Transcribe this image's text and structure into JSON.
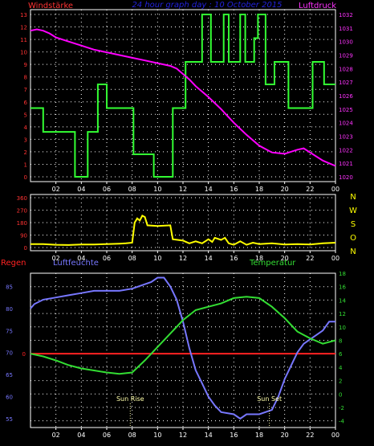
{
  "header": {
    "title": "24 hour graph day : 10 October 2015",
    "left_label": "Windstärke",
    "right_label": "Luftdruck"
  },
  "direction_labels": [
    "N",
    "W",
    "S",
    "O",
    "N"
  ],
  "lower_header": {
    "left_label": "Regen",
    "mid_label": "Luftfeuchte",
    "right_label": "Temperatur"
  },
  "colors": {
    "wind": "#33ff33",
    "pressure": "#ff00ff",
    "direction": "#ffff00",
    "humidity": "#7777ff",
    "temperature": "#33dd33",
    "rain": "#ff2222",
    "wind_axis": "#ff3333",
    "pressure_axis": "#ff33ff",
    "title": "#2222dd",
    "frame": "#ffffff",
    "grid": "#ffffff",
    "sun_markers": "#ffffaa"
  },
  "chart_data": [
    {
      "type": "line",
      "x_ticks": [
        "02",
        "04",
        "06",
        "08",
        "10",
        "12",
        "14",
        "16",
        "18",
        "20",
        "22",
        "00"
      ],
      "xlim": [
        0,
        24
      ],
      "series": [
        {
          "name": "Windstärke",
          "axis": "left",
          "ylim": [
            0,
            13
          ],
          "ticks": [
            0,
            1,
            2,
            3,
            4,
            5,
            6,
            7,
            8,
            9,
            10,
            11,
            12,
            13
          ],
          "step": true,
          "points": [
            [
              0,
              5.5
            ],
            [
              1,
              5.5
            ],
            [
              1,
              3.6
            ],
            [
              3.5,
              3.6
            ],
            [
              3.5,
              0
            ],
            [
              4.5,
              0
            ],
            [
              4.5,
              3.6
            ],
            [
              5.3,
              3.6
            ],
            [
              5.3,
              7.4
            ],
            [
              6,
              7.4
            ],
            [
              6,
              5.5
            ],
            [
              8.1,
              5.5
            ],
            [
              8.1,
              1.8
            ],
            [
              9.7,
              1.8
            ],
            [
              9.7,
              0
            ],
            [
              11.2,
              0
            ],
            [
              11.2,
              5.5
            ],
            [
              12.2,
              5.5
            ],
            [
              12.2,
              9.2
            ],
            [
              13.5,
              9.2
            ],
            [
              13.5,
              13
            ],
            [
              14.2,
              13
            ],
            [
              14.2,
              9.2
            ],
            [
              15.2,
              9.2
            ],
            [
              15.2,
              13
            ],
            [
              15.6,
              13
            ],
            [
              15.6,
              9.2
            ],
            [
              16.5,
              9.2
            ],
            [
              16.5,
              13
            ],
            [
              16.9,
              13
            ],
            [
              16.9,
              9.2
            ],
            [
              17.6,
              9.2
            ],
            [
              17.6,
              11.1
            ],
            [
              17.9,
              11.1
            ],
            [
              17.9,
              13
            ],
            [
              18.5,
              13
            ],
            [
              18.5,
              7.4
            ],
            [
              19.2,
              7.4
            ],
            [
              19.2,
              9.2
            ],
            [
              20.3,
              9.2
            ],
            [
              20.3,
              5.5
            ],
            [
              22.2,
              5.5
            ],
            [
              22.2,
              9.2
            ],
            [
              23.1,
              9.2
            ],
            [
              23.1,
              7.4
            ],
            [
              24,
              7.4
            ]
          ]
        },
        {
          "name": "Luftdruck",
          "axis": "right",
          "ylim": [
            1020,
            1032
          ],
          "ticks": [
            1020,
            1021,
            1022,
            1023,
            1024,
            1025,
            1026,
            1027,
            1028,
            1029,
            1030,
            1031,
            1032
          ],
          "points": [
            [
              0,
              1030.8
            ],
            [
              0.5,
              1030.9
            ],
            [
              1,
              1030.8
            ],
            [
              1.5,
              1030.6
            ],
            [
              2,
              1030.3
            ],
            [
              3,
              1030
            ],
            [
              4,
              1029.7
            ],
            [
              5,
              1029.4
            ],
            [
              6,
              1029.2
            ],
            [
              7,
              1029
            ],
            [
              8,
              1028.8
            ],
            [
              9,
              1028.6
            ],
            [
              10,
              1028.4
            ],
            [
              11,
              1028.2
            ],
            [
              11.5,
              1028
            ],
            [
              12,
              1027.6
            ],
            [
              12.5,
              1027.2
            ],
            [
              13,
              1026.7
            ],
            [
              14,
              1025.9
            ],
            [
              15,
              1025
            ],
            [
              16,
              1024
            ],
            [
              17,
              1023.1
            ],
            [
              18,
              1022.3
            ],
            [
              19,
              1021.8
            ],
            [
              20,
              1021.7
            ],
            [
              21,
              1022
            ],
            [
              21.5,
              1022.1
            ],
            [
              22,
              1021.8
            ],
            [
              23,
              1021.2
            ],
            [
              24,
              1020.8
            ]
          ]
        }
      ]
    },
    {
      "type": "line",
      "x_ticks": [
        "02",
        "04",
        "06",
        "08",
        "10",
        "12",
        "14",
        "16",
        "18",
        "20",
        "22",
        "00"
      ],
      "xlim": [
        0,
        24
      ],
      "series": [
        {
          "name": "Wind direction",
          "ylim": [
            0,
            360
          ],
          "ticks": [
            0,
            90,
            180,
            270,
            360
          ],
          "points": [
            [
              0,
              25
            ],
            [
              1,
              25
            ],
            [
              2,
              20
            ],
            [
              3,
              18
            ],
            [
              4,
              22
            ],
            [
              5,
              22
            ],
            [
              6,
              25
            ],
            [
              7,
              28
            ],
            [
              7.5,
              30
            ],
            [
              8,
              35
            ],
            [
              8.2,
              180
            ],
            [
              8.4,
              210
            ],
            [
              8.6,
              195
            ],
            [
              8.8,
              230
            ],
            [
              9,
              220
            ],
            [
              9.2,
              160
            ],
            [
              10,
              155
            ],
            [
              11,
              160
            ],
            [
              11.2,
              60
            ],
            [
              12,
              50
            ],
            [
              12.5,
              30
            ],
            [
              13,
              45
            ],
            [
              13.5,
              30
            ],
            [
              14,
              60
            ],
            [
              14.3,
              40
            ],
            [
              14.5,
              70
            ],
            [
              15,
              55
            ],
            [
              15.3,
              70
            ],
            [
              15.6,
              30
            ],
            [
              16,
              20
            ],
            [
              16.5,
              45
            ],
            [
              17,
              20
            ],
            [
              17.5,
              35
            ],
            [
              18,
              25
            ],
            [
              19,
              30
            ],
            [
              20,
              22
            ],
            [
              21,
              25
            ],
            [
              22,
              22
            ],
            [
              23,
              30
            ],
            [
              24,
              35
            ]
          ]
        }
      ]
    },
    {
      "type": "line",
      "x_ticks": [
        "02",
        "04",
        "06",
        "08",
        "10",
        "12",
        "14",
        "16",
        "18",
        "20",
        "22",
        "00"
      ],
      "xlim": [
        0,
        24
      ],
      "annotations": [
        {
          "label": "Sun Rise",
          "x": 7.85
        },
        {
          "label": "Sun Set",
          "x": 18.8
        }
      ],
      "series": [
        {
          "name": "Luftfeuchte",
          "axis": "left",
          "ylim": [
            53,
            88
          ],
          "ticks": [
            55,
            60,
            65,
            70,
            75,
            80,
            85
          ],
          "step": true,
          "points": [
            [
              0,
              80
            ],
            [
              0.3,
              81
            ],
            [
              1,
              82
            ],
            [
              2,
              82.5
            ],
            [
              3,
              83
            ],
            [
              4,
              83.5
            ],
            [
              5,
              84
            ],
            [
              6,
              84
            ],
            [
              7,
              84
            ],
            [
              8,
              84.5
            ],
            [
              9,
              85.5
            ],
            [
              9.5,
              86
            ],
            [
              10,
              87
            ],
            [
              10.5,
              87
            ],
            [
              11,
              85
            ],
            [
              11.5,
              82
            ],
            [
              12,
              77
            ],
            [
              12.5,
              71
            ],
            [
              13,
              66
            ],
            [
              13.5,
              63
            ],
            [
              14,
              60
            ],
            [
              14.5,
              58
            ],
            [
              15,
              56.5
            ],
            [
              16,
              56
            ],
            [
              16.5,
              55
            ],
            [
              17,
              56
            ],
            [
              18,
              56
            ],
            [
              19,
              57
            ],
            [
              19.5,
              60
            ],
            [
              20,
              64
            ],
            [
              20.5,
              67
            ],
            [
              21,
              70
            ],
            [
              21.5,
              72
            ],
            [
              22,
              73
            ],
            [
              22.5,
              74
            ],
            [
              23,
              75
            ],
            [
              23.5,
              77
            ],
            [
              24,
              77
            ]
          ]
        },
        {
          "name": "Temperatur",
          "axis": "right",
          "ylim": [
            -5,
            18
          ],
          "ticks": [
            -4,
            -2,
            0,
            2,
            4,
            6,
            8,
            10,
            12,
            14,
            16,
            18
          ],
          "points": [
            [
              0,
              6
            ],
            [
              1,
              5.6
            ],
            [
              2,
              5
            ],
            [
              3,
              4.3
            ],
            [
              4,
              3.8
            ],
            [
              5,
              3.5
            ],
            [
              6,
              3.2
            ],
            [
              7,
              3
            ],
            [
              8,
              3.2
            ],
            [
              9,
              5
            ],
            [
              10,
              7
            ],
            [
              11,
              9
            ],
            [
              12,
              11
            ],
            [
              13,
              12.5
            ],
            [
              14,
              13
            ],
            [
              15,
              13.5
            ],
            [
              16,
              14.3
            ],
            [
              17,
              14.5
            ],
            [
              18,
              14.3
            ],
            [
              19,
              13
            ],
            [
              20,
              11.3
            ],
            [
              21,
              9.3
            ],
            [
              22,
              8.3
            ],
            [
              23,
              7.5
            ],
            [
              24,
              8
            ]
          ]
        },
        {
          "name": "Regen",
          "axis": "left-inner",
          "points": [
            [
              0,
              0
            ],
            [
              24,
              0
            ]
          ],
          "tick_label": "0"
        }
      ]
    }
  ]
}
